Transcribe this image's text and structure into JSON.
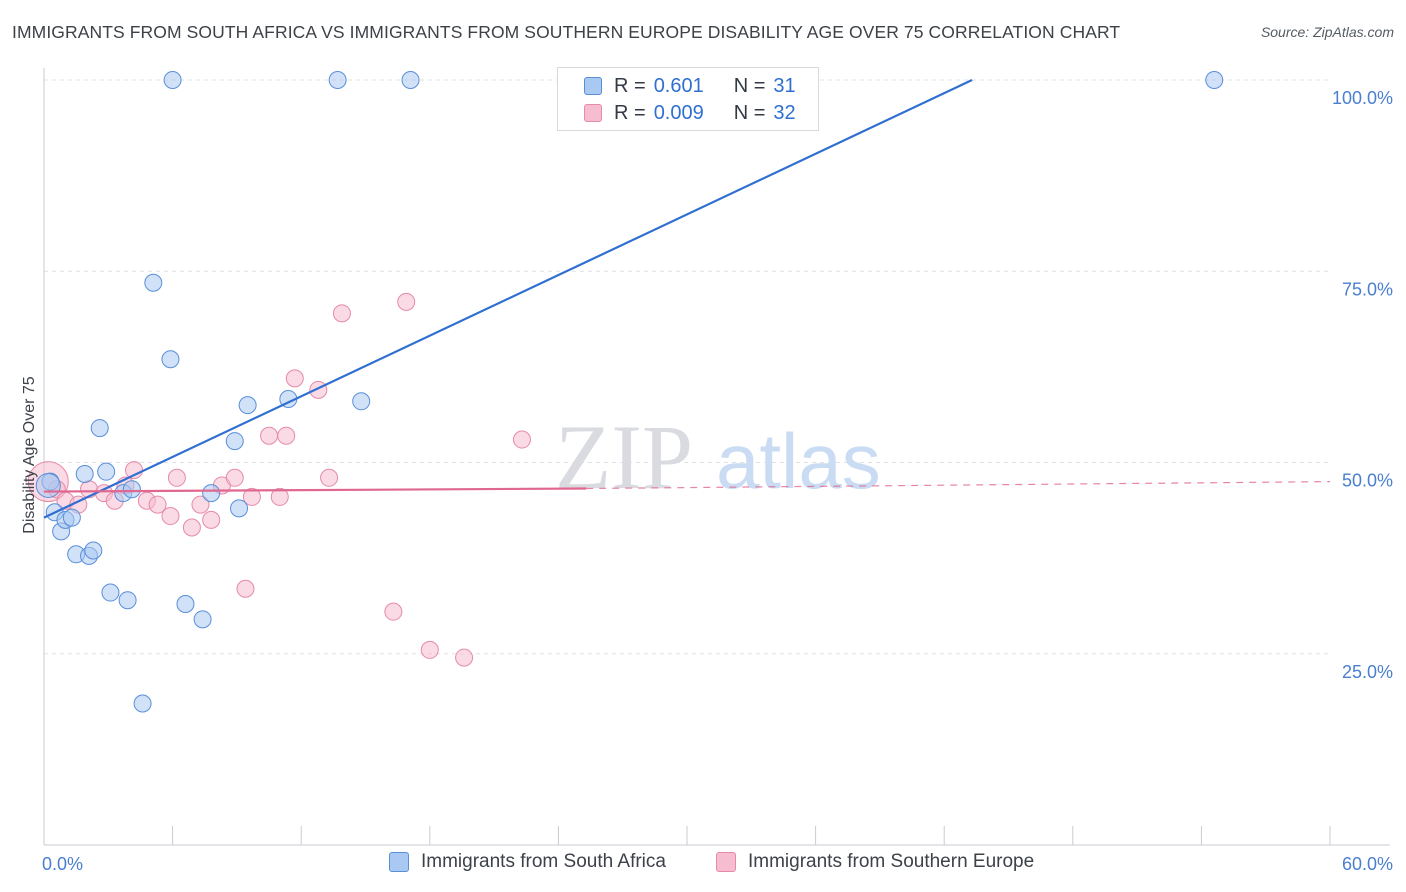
{
  "header": {
    "title": "IMMIGRANTS FROM SOUTH AFRICA VS IMMIGRANTS FROM SOUTHERN EUROPE DISABILITY AGE OVER 75 CORRELATION CHART",
    "source": "Source: ZipAtlas.com"
  },
  "watermark": {
    "part1": "ZIP",
    "part2": "atlas"
  },
  "legend": {
    "rows": [
      {
        "r_label": "R =",
        "r_value": "0.601",
        "n_label": "N =",
        "n_value": "31"
      },
      {
        "r_label": "R =",
        "r_value": "0.009",
        "n_label": "N =",
        "n_value": "32"
      }
    ]
  },
  "bottom_legend": {
    "series1": "Immigrants from South Africa",
    "series2": "Immigrants from Southern Europe"
  },
  "colors": {
    "blue_fill": "#a9c8f2",
    "blue_stroke": "#5a8fd8",
    "blue_line": "#2f6fd1",
    "pink_fill": "#f6bcd0",
    "pink_stroke": "#e68aa8",
    "pink_line": "#e0678f",
    "grid": "#dfe1e5",
    "axis_text": "#4a7fd0"
  },
  "chart_data": {
    "type": "scatter",
    "title": "IMMIGRANTS FROM SOUTH AFRICA VS IMMIGRANTS FROM SOUTHERN EUROPE DISABILITY AGE OVER 75 CORRELATION CHART",
    "xlabel": "",
    "ylabel": "Disability Age Over 75",
    "xlim": [
      0,
      60
    ],
    "ylim": [
      0,
      100
    ],
    "x_tick_labels": [
      "0.0%",
      "60.0%"
    ],
    "y_ticks": [
      25,
      50,
      75,
      100
    ],
    "y_tick_labels": [
      "25.0%",
      "50.0%",
      "75.0%",
      "100.0%"
    ],
    "grid": true,
    "series": [
      {
        "name": "Immigrants from South Africa",
        "R": 0.601,
        "N": 31,
        "points": [
          [
            0.3,
            47.5
          ],
          [
            0.5,
            43.5
          ],
          [
            0.8,
            41
          ],
          [
            1.0,
            42.5
          ],
          [
            1.3,
            42.8
          ],
          [
            1.5,
            38
          ],
          [
            1.9,
            48.5
          ],
          [
            2.1,
            37.8
          ],
          [
            2.3,
            38.5
          ],
          [
            2.6,
            54.5
          ],
          [
            2.9,
            48.8
          ],
          [
            3.1,
            33
          ],
          [
            3.7,
            46
          ],
          [
            3.9,
            32
          ],
          [
            4.1,
            46.5
          ],
          [
            4.6,
            18.5
          ],
          [
            5.1,
            73.5
          ],
          [
            5.9,
            63.5
          ],
          [
            6.0,
            100
          ],
          [
            6.6,
            31.5
          ],
          [
            7.4,
            29.5
          ],
          [
            7.8,
            46
          ],
          [
            8.9,
            52.8
          ],
          [
            9.1,
            44
          ],
          [
            9.5,
            57.5
          ],
          [
            11.4,
            58.3
          ],
          [
            13.7,
            100
          ],
          [
            14.8,
            58
          ],
          [
            17.1,
            100
          ],
          [
            54.6,
            100
          ],
          [
            0.2,
            47
          ]
        ],
        "trendline": {
          "x": [
            0,
            43.3
          ],
          "y": [
            42.8,
            100
          ]
        }
      },
      {
        "name": "Immigrants from Southern Europe",
        "R": 0.009,
        "N": 32,
        "points": [
          [
            0.2,
            47.5
          ],
          [
            0.6,
            46.5
          ],
          [
            1.0,
            45
          ],
          [
            1.6,
            44.5
          ],
          [
            2.1,
            46.5
          ],
          [
            2.8,
            46
          ],
          [
            3.3,
            45
          ],
          [
            3.8,
            47
          ],
          [
            4.2,
            49
          ],
          [
            4.8,
            45
          ],
          [
            5.3,
            44.5
          ],
          [
            5.9,
            43
          ],
          [
            6.2,
            48
          ],
          [
            6.9,
            41.5
          ],
          [
            7.3,
            44.5
          ],
          [
            7.8,
            42.5
          ],
          [
            8.3,
            47
          ],
          [
            8.9,
            48
          ],
          [
            9.4,
            33.5
          ],
          [
            9.7,
            45.5
          ],
          [
            10.5,
            53.5
          ],
          [
            11.0,
            45.5
          ],
          [
            11.3,
            53.5
          ],
          [
            11.7,
            61
          ],
          [
            12.8,
            59.5
          ],
          [
            13.3,
            48
          ],
          [
            13.9,
            69.5
          ],
          [
            16.3,
            30.5
          ],
          [
            16.9,
            71
          ],
          [
            18.0,
            25.5
          ],
          [
            19.6,
            24.5
          ],
          [
            22.3,
            53
          ]
        ],
        "trendline": {
          "x": [
            0,
            25.3
          ],
          "y": [
            46.2,
            46.6
          ]
        },
        "trendline_extension": {
          "x": [
            25.3,
            60
          ],
          "y": [
            46.6,
            47.5
          ]
        }
      }
    ]
  }
}
